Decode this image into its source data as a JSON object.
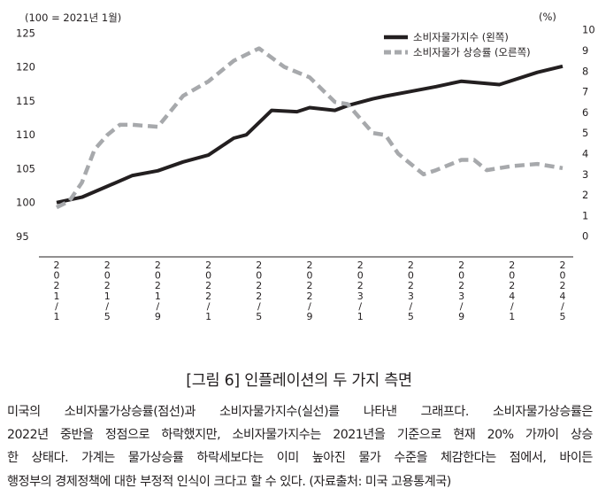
{
  "chart_data": {
    "type": "line",
    "left_axis_label": "(100 = 2021년 1월)",
    "right_axis_label": "(%)",
    "left_ylim": [
      92,
      127
    ],
    "left_ticks": [
      95,
      100,
      105,
      110,
      115,
      120,
      125
    ],
    "right_ylim": [
      -1,
      10.5
    ],
    "right_ticks": [
      0,
      1,
      2,
      3,
      4,
      5,
      6,
      7,
      8,
      9,
      10
    ],
    "x_tick_labels": [
      "2021/1",
      "2021/5",
      "2021/9",
      "2022/1",
      "2022/5",
      "2022/9",
      "2023/1",
      "2023/5",
      "2023/9",
      "2024/1",
      "2024/5"
    ],
    "legend": {
      "position": "top-right",
      "entries": [
        "소비자물가지수 (왼쪽)",
        "소비자물가 상승률 (오른쪽)"
      ]
    },
    "series": [
      {
        "name": "소비자물가지수 (왼쪽)",
        "axis": "left",
        "style": "solid",
        "color": "#231f20",
        "x": [
          0,
          2,
          4,
          6,
          8,
          10,
          12,
          14,
          15,
          17,
          19,
          20,
          22,
          23,
          25,
          26,
          28,
          30,
          32,
          35,
          38,
          40
        ],
        "values": [
          100.0,
          100.8,
          102.4,
          104.0,
          104.7,
          106.0,
          107.0,
          109.5,
          110.0,
          113.6,
          113.4,
          114.0,
          113.6,
          114.3,
          115.3,
          115.7,
          116.4,
          117.1,
          117.9,
          117.4,
          119.2,
          120.1
        ]
      },
      {
        "name": "소비자물가 상승률 (오른쪽)",
        "axis": "right",
        "style": "dashed",
        "color": "#a7a9ac",
        "x": [
          0,
          1,
          2,
          3,
          4,
          5,
          6,
          8,
          10,
          12,
          14,
          16,
          18,
          20,
          22,
          23,
          25,
          26,
          27,
          29,
          30,
          32,
          33,
          34,
          36,
          38,
          40
        ],
        "values": [
          1.4,
          1.7,
          2.6,
          4.2,
          4.9,
          5.4,
          5.4,
          5.3,
          6.8,
          7.5,
          8.5,
          9.1,
          8.2,
          7.7,
          6.5,
          6.4,
          5.0,
          4.9,
          4.0,
          3.0,
          3.2,
          3.7,
          3.7,
          3.2,
          3.4,
          3.5,
          3.3
        ]
      }
    ]
  },
  "caption": "[그림 6] 인플레이션의 두 가지 측면",
  "body_lines": [
    "미국의 소비자물가상승률(점선)과 소비자물가지수(실선)를 나타낸 그래프다.  소비자물가상승률은",
    "2022년 중반을 정점으로 하락했지만, 소비자물가지수는 2021년을 기준으로 현재 20% 가까이 상승",
    "한 상태다. 가계는 물가상승률 하락세보다는 이미 높아진 물가 수준을 체감한다는 점에서, 바이든",
    "행정부의 경제정책에 대한 부정적 인식이 크다고 할 수 있다. (자료출처: 미국 고용통계국)"
  ]
}
